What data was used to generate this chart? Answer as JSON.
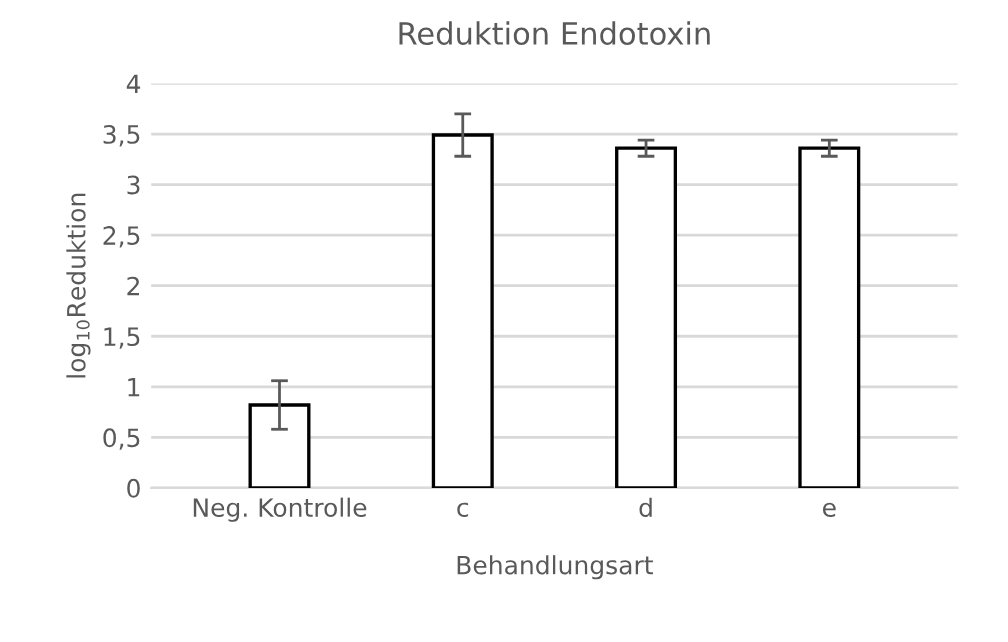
{
  "chart_data": {
    "type": "bar",
    "title": "Reduktion Endotoxin",
    "xlabel": "Behandlungsart",
    "ylabel": "log$_{10}$Reduktion",
    "categories": [
      "Neg. Kontrolle",
      "c",
      "d",
      "e"
    ],
    "values": [
      0.82,
      3.49,
      3.36,
      3.36
    ],
    "errors": [
      0.24,
      0.21,
      0.08,
      0.08
    ],
    "color": "#ffffff",
    "ylim": [
      0,
      4
    ],
    "yticks": [
      0,
      {
        "value": 0.5,
        "label": "0,5"
      },
      1,
      {
        "value": 1.5,
        "label": "1,5"
      },
      2,
      {
        "value": 2.5,
        "label": "2,5"
      },
      3,
      {
        "value": 3.5,
        "label": "3,5"
      },
      4
    ],
    "grid": "y",
    "legend": false
  }
}
